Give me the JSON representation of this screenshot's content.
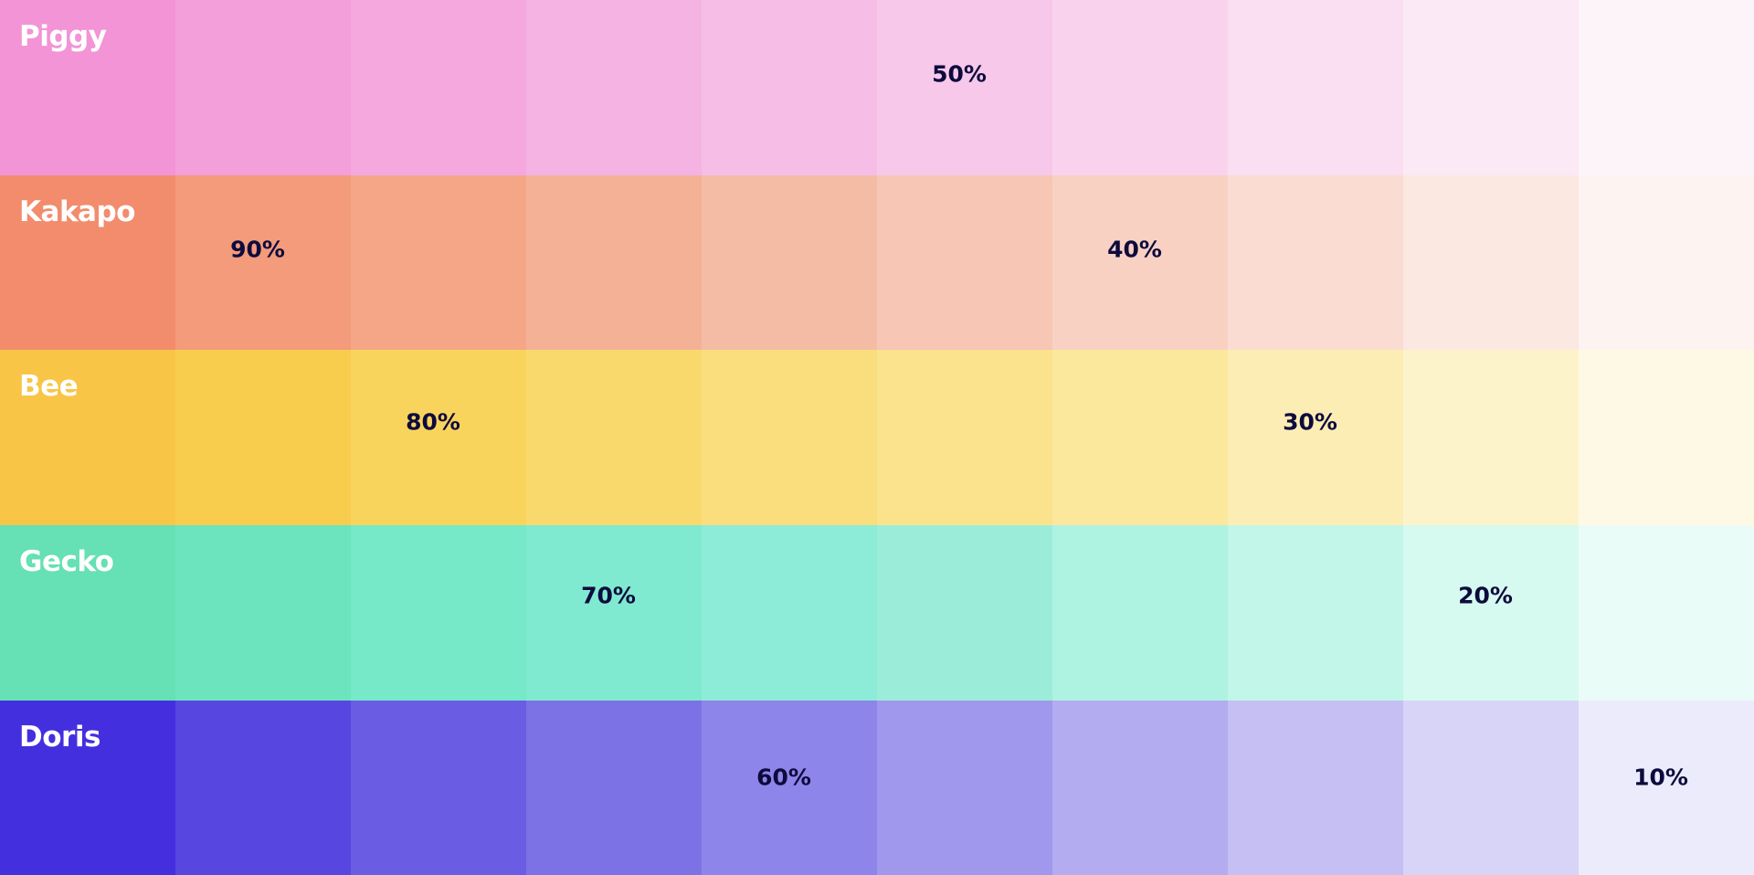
{
  "rows": [
    {
      "name": "Piggy",
      "swatches": [
        "#f294d6",
        "#f39fd9",
        "#f4a8de",
        "#f4b3e2",
        "#f6bee6",
        "#f7c8ea",
        "#f9d3ed",
        "#fadef1",
        "#fbe9f5",
        "#fdf4fa"
      ],
      "marker": {
        "index": 5,
        "label": "50%"
      }
    },
    {
      "name": "Kakapo",
      "swatches": [
        "#f28c6d",
        "#f39b7b",
        "#f4a687",
        "#f4b196",
        "#f5bca5",
        "#f7c6b4",
        "#f8d1c3",
        "#fadcd2",
        "#fbe8e1",
        "#fdf3f0"
      ],
      "marker": {
        "index": 1,
        "label": "90%"
      },
      "marker2": {
        "index": 6,
        "label": "40%"
      }
    },
    {
      "name": "Bee",
      "swatches": [
        "#f8c546",
        "#f8cd4d",
        "#f9d45d",
        "#f9d96c",
        "#fadd7c",
        "#fae38c",
        "#fbe89d",
        "#fcedb4",
        "#fdf3ca",
        "#fef9e4"
      ],
      "marker": {
        "index": 2,
        "label": "80%"
      },
      "marker2": {
        "index": 7,
        "label": "30%"
      }
    },
    {
      "name": "Gecko",
      "swatches": [
        "#66e0b5",
        "#6ce5bf",
        "#75e9c8",
        "#7fead0",
        "#8decd7",
        "#9bedda",
        "#aef2e2",
        "#c1f6e9",
        "#d6f9f0",
        "#eafcf7"
      ],
      "marker": {
        "index": 3,
        "label": "70%"
      },
      "marker2": {
        "index": 8,
        "label": "20%"
      }
    },
    {
      "name": "Doris",
      "swatches": [
        "#442fdf",
        "#5746e0",
        "#6a5de3",
        "#7d71e6",
        "#8e85ea",
        "#a098ec",
        "#b3acf0",
        "#c5bff3",
        "#d8d4f7",
        "#ecebfb"
      ],
      "marker": {
        "index": 4,
        "label": "60%"
      },
      "marker2": {
        "index": 9,
        "label": "10%"
      }
    }
  ],
  "colors": {
    "label_text": "#ffffff",
    "percent_text": "#0d0b3d"
  }
}
